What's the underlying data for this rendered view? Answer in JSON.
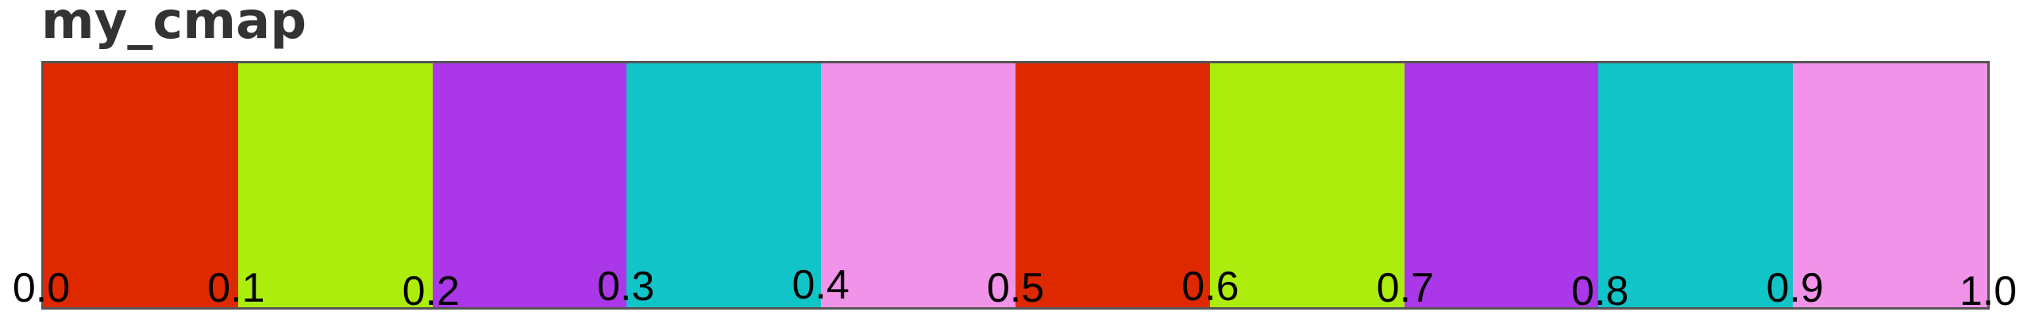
{
  "chart_data": {
    "type": "colormap",
    "title": "my_cmap",
    "segments": [
      {
        "start": 0.0,
        "end": 0.1,
        "color": "#de2900"
      },
      {
        "start": 0.1,
        "end": 0.2,
        "color": "#aced0e"
      },
      {
        "start": 0.2,
        "end": 0.3,
        "color": "#ab38e8"
      },
      {
        "start": 0.3,
        "end": 0.4,
        "color": "#10c4c8"
      },
      {
        "start": 0.4,
        "end": 0.5,
        "color": "#f193e8"
      },
      {
        "start": 0.5,
        "end": 0.6,
        "color": "#de2900"
      },
      {
        "start": 0.6,
        "end": 0.7,
        "color": "#aced0e"
      },
      {
        "start": 0.7,
        "end": 0.8,
        "color": "#ab38e8"
      },
      {
        "start": 0.8,
        "end": 0.9,
        "color": "#10c4c8"
      },
      {
        "start": 0.9,
        "end": 1.0,
        "color": "#f193e8"
      }
    ],
    "ticks": [
      "0.0",
      "0.1",
      "0.2",
      "0.3",
      "0.4",
      "0.5",
      "0.6",
      "0.7",
      "0.8",
      "0.9",
      "1.0"
    ],
    "xlim": [
      0.0,
      1.0
    ]
  }
}
